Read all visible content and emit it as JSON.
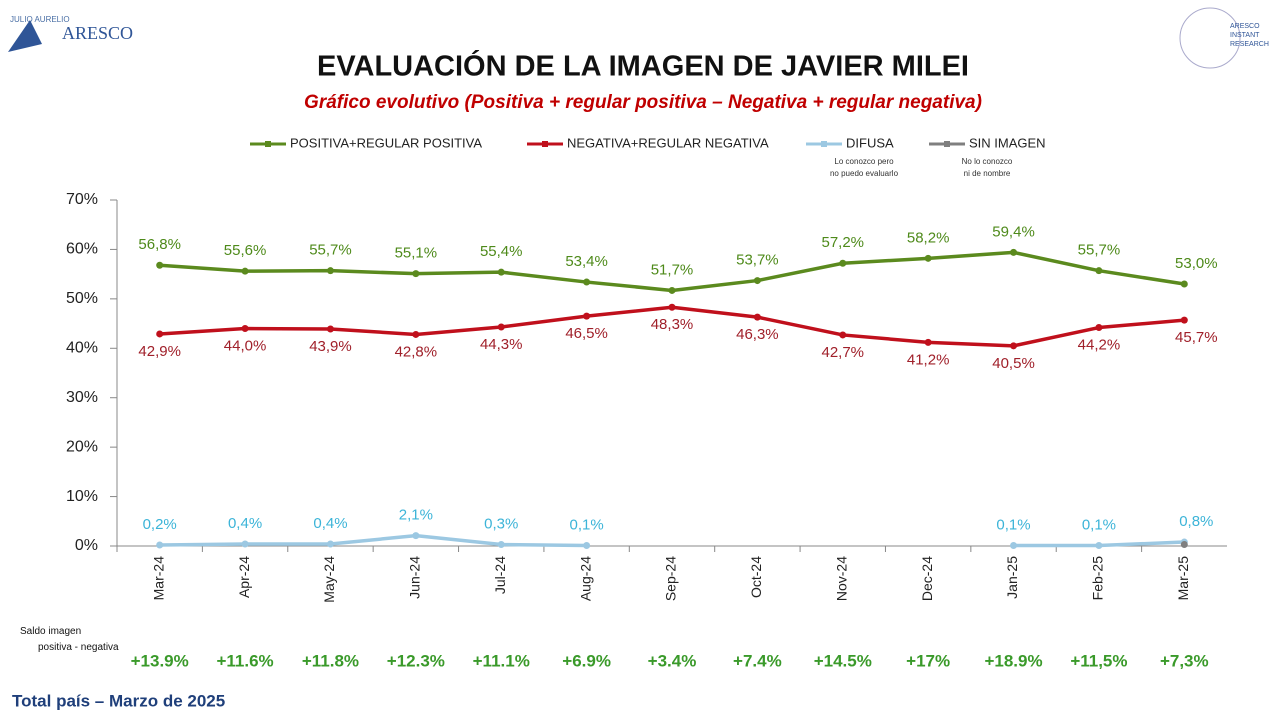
{
  "header": {
    "logo_left_top": "JULIO AURELIO",
    "logo_left": "ARESCO",
    "logo_right": [
      "ARESCO",
      "INSTANT",
      "RESEARCH"
    ]
  },
  "chart_data": {
    "type": "line",
    "title": "EVALUACIÓN DE LA IMAGEN DE JAVIER MILEI",
    "subtitle": "Gráfico evolutivo (Positiva + regular positiva – Negativa + regular negativa)",
    "categories": [
      "Mar-24",
      "Apr-24",
      "May-24",
      "Jun-24",
      "Jul-24",
      "Aug-24",
      "Sep-24",
      "Oct-24",
      "Nov-24",
      "Dec-24",
      "Jan-25",
      "Feb-25",
      "Mar-25"
    ],
    "ylim": [
      0,
      70
    ],
    "yticks": [
      {
        "value": 0,
        "label": "0%"
      },
      {
        "value": 10,
        "label": "10%"
      },
      {
        "value": 20,
        "label": "20%"
      },
      {
        "value": 30,
        "label": "30%"
      },
      {
        "value": 40,
        "label": "40%"
      },
      {
        "value": 50,
        "label": "50%"
      },
      {
        "value": 60,
        "label": "60%"
      },
      {
        "value": 70,
        "label": "70%"
      }
    ],
    "series": [
      {
        "name": "POSITIVA+REGULAR POSITIVA",
        "color": "#5b8a1e",
        "label_color": "#4e8a1a",
        "values": [
          56.8,
          55.6,
          55.7,
          55.1,
          55.4,
          53.4,
          51.7,
          53.7,
          57.2,
          58.2,
          59.4,
          55.7,
          53.0
        ],
        "value_labels": [
          "56,8%",
          "55,6%",
          "55,7%",
          "55,1%",
          "55,4%",
          "53,4%",
          "51,7%",
          "53,7%",
          "57,2%",
          "58,2%",
          "59,4%",
          "55,7%",
          "53,0%"
        ]
      },
      {
        "name": "NEGATIVA+REGULAR NEGATIVA",
        "color": "#c0101c",
        "label_color": "#a0202a",
        "values": [
          42.9,
          44.0,
          43.9,
          42.8,
          44.3,
          46.5,
          48.3,
          46.3,
          42.7,
          41.2,
          40.5,
          44.2,
          45.7
        ],
        "value_labels": [
          "42,9%",
          "44,0%",
          "43,9%",
          "42,8%",
          "44,3%",
          "46,5%",
          "48,3%",
          "46,3%",
          "42,7%",
          "41,2%",
          "40,5%",
          "44,2%",
          "45,7%"
        ]
      },
      {
        "name": "DIFUSA",
        "note": "Lo conozco pero no puedo evaluarlo",
        "color": "#9cc8e2",
        "label_color": "#3cb4d8",
        "values": [
          0.2,
          0.4,
          0.4,
          2.1,
          0.3,
          0.1,
          null,
          null,
          null,
          null,
          0.1,
          0.1,
          0.8
        ],
        "value_labels": [
          "0,2%",
          "0,4%",
          "0,4%",
          "2,1%",
          "0,3%",
          "0,1%",
          null,
          null,
          null,
          null,
          "0,1%",
          "0,1%",
          "0,8%"
        ]
      },
      {
        "name": "SIN IMAGEN",
        "note": "No lo conozco ni de nombre",
        "color": "#7f7f7f",
        "values": [
          null,
          null,
          null,
          null,
          null,
          null,
          null,
          null,
          null,
          null,
          null,
          null,
          0.3
        ]
      }
    ]
  },
  "balance": {
    "label": "Saldo imagen positiva - negativa",
    "values": [
      "+13.9%",
      "+11.6%",
      "+11.8%",
      "+12.3%",
      "+11.1%",
      "+6.9%",
      "+3.4%",
      "+7.4%",
      "+14.5%",
      "+17%",
      "+18.9%",
      "+11,5%",
      "+7,3%"
    ]
  },
  "footer": "Total país – Marzo de 2025"
}
